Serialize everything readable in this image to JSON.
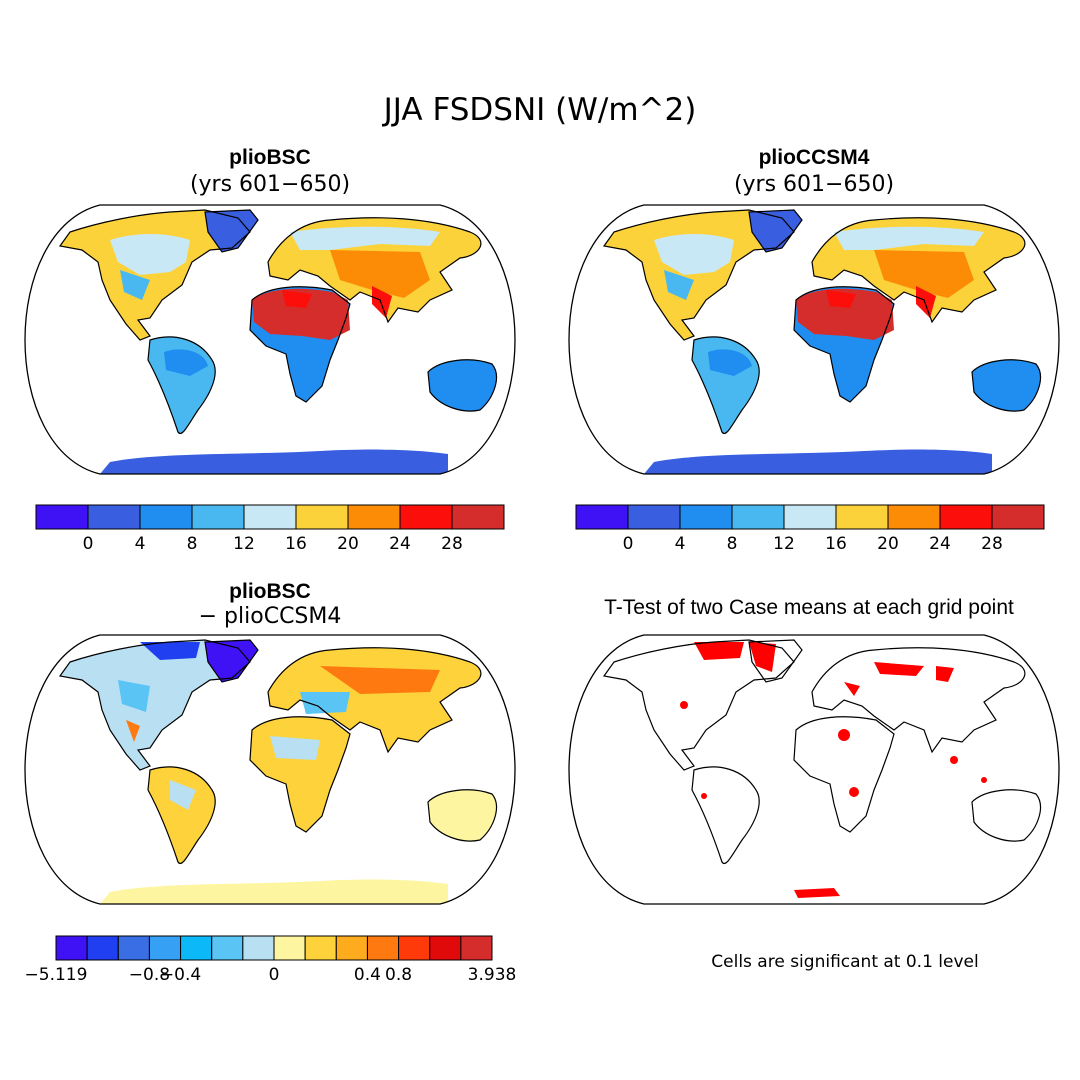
{
  "figure": {
    "title": "JJA FSDSNI (W/m^2)",
    "note": "Cells are significant at 0.1 level"
  },
  "panels": [
    {
      "title": "plioBSC",
      "subtitle": "(yrs 601−650)"
    },
    {
      "title": "plioCCSM4",
      "subtitle": "(yrs 601−650)"
    },
    {
      "title": "plioBSC",
      "subtitle": "− plioCCSM4"
    },
    {
      "title": "T-Test of two Case means at each grid point",
      "subtitle": ""
    }
  ],
  "colorbars": {
    "abs": {
      "colors": [
        "#3f12f5",
        "#3a5ee0",
        "#1f8ef0",
        "#4ab8f0",
        "#c8e8f6",
        "#fcd23a",
        "#fc8c06",
        "#fc0f0a",
        "#d52c2c"
      ],
      "tick_labels": [
        "0",
        "4",
        "8",
        "12",
        "16",
        "20",
        "24",
        "28"
      ]
    },
    "diff": {
      "colors": [
        "#3f12f5",
        "#1f3ff0",
        "#3a6ee5",
        "#36a0f5",
        "#0cb8f8",
        "#5ac4f4",
        "#b8e0f2",
        "#fef5a0",
        "#fed23a",
        "#feab1e",
        "#fe7a10",
        "#fe3a0a",
        "#e00a0a",
        "#d52c2c"
      ],
      "tick_labels": [
        "−5.119",
        "−0.8",
        "−0.4",
        "0",
        "0.4",
        "0.8",
        "3.938"
      ]
    }
  },
  "colors": {
    "sig": "#ff0000",
    "antarctic": "#3a5ee0",
    "diff_base": "#fcd23a"
  }
}
